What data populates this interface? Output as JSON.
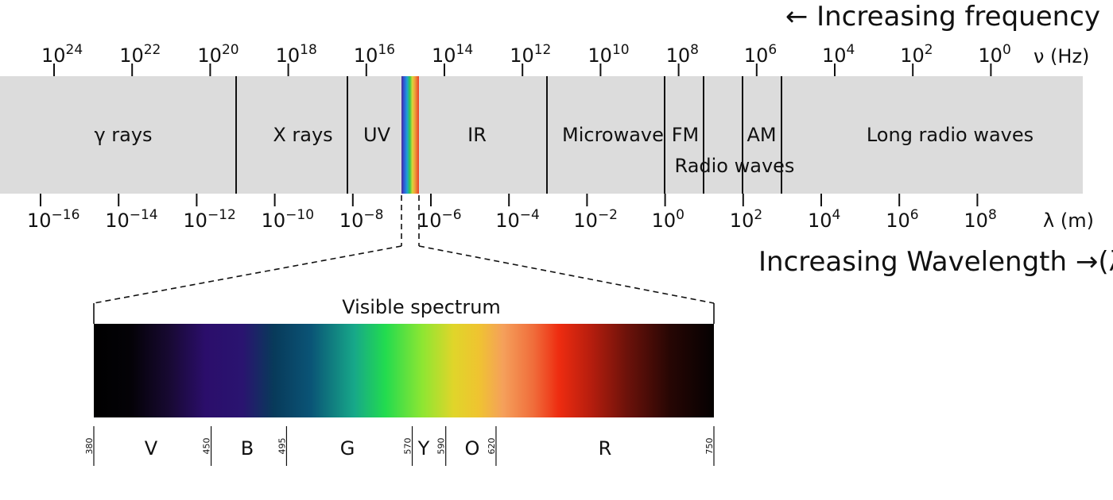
{
  "frequency_arrow_label": "← Increasing frequency",
  "wavelength_arrow_label": "Increasing Wavelength →(λ)",
  "frequency_axis": {
    "unit_label": "ν (Hz)",
    "ticks": [
      {
        "base": "10",
        "exp": "24"
      },
      {
        "base": "10",
        "exp": "22"
      },
      {
        "base": "10",
        "exp": "20"
      },
      {
        "base": "10",
        "exp": "18"
      },
      {
        "base": "10",
        "exp": "16"
      },
      {
        "base": "10",
        "exp": "14"
      },
      {
        "base": "10",
        "exp": "12"
      },
      {
        "base": "10",
        "exp": "10"
      },
      {
        "base": "10",
        "exp": "8"
      },
      {
        "base": "10",
        "exp": "6"
      },
      {
        "base": "10",
        "exp": "4"
      },
      {
        "base": "10",
        "exp": "2"
      },
      {
        "base": "10",
        "exp": "0"
      }
    ]
  },
  "wavelength_axis": {
    "unit_label": "λ (m)",
    "ticks": [
      {
        "base": "10",
        "exp": "−16"
      },
      {
        "base": "10",
        "exp": "−14"
      },
      {
        "base": "10",
        "exp": "−12"
      },
      {
        "base": "10",
        "exp": "−10"
      },
      {
        "base": "10",
        "exp": "−8"
      },
      {
        "base": "10",
        "exp": "−6"
      },
      {
        "base": "10",
        "exp": "−4"
      },
      {
        "base": "10",
        "exp": "−2"
      },
      {
        "base": "10",
        "exp": "0"
      },
      {
        "base": "10",
        "exp": "2"
      },
      {
        "base": "10",
        "exp": "4"
      },
      {
        "base": "10",
        "exp": "6"
      },
      {
        "base": "10",
        "exp": "8"
      }
    ]
  },
  "bands": {
    "gamma": "γ rays",
    "xray": "X rays",
    "uv": "UV",
    "ir": "IR",
    "microwave": "Microwave",
    "fm": "FM",
    "am": "AM",
    "long_radio": "Long radio waves",
    "radio": "Radio waves"
  },
  "visible_spectrum": {
    "title": "Visible spectrum",
    "boundaries_nm": [
      "380",
      "450",
      "495",
      "570",
      "590",
      "620",
      "750"
    ],
    "color_letters": [
      "V",
      "B",
      "G",
      "Y",
      "O",
      "R"
    ]
  },
  "colors": {
    "band_background": "#dcdcdc",
    "divider": "#111111"
  }
}
